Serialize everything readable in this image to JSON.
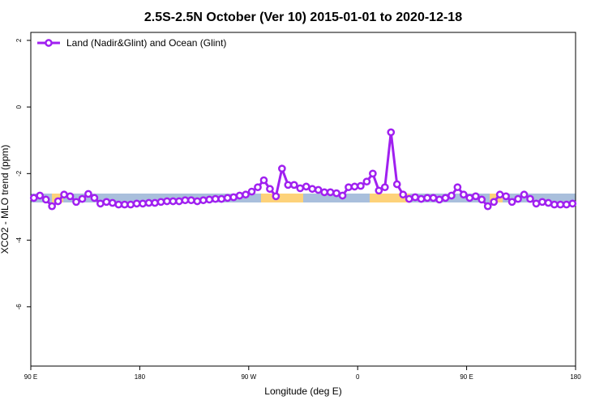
{
  "chart_data": {
    "type": "line",
    "title": "2.5S-2.5N October (Ver 10)   2015-01-01 to 2020-12-18",
    "xlabel": "Longitude (deg E)",
    "ylabel": "XCO2 - MLO trend (ppm)",
    "x": [
      92.5,
      97.5,
      102.5,
      107.5,
      112.5,
      117.5,
      122.5,
      127.5,
      132.5,
      137.5,
      142.5,
      147.5,
      152.5,
      157.5,
      162.5,
      167.5,
      172.5,
      177.5,
      182.5,
      187.5,
      192.5,
      197.5,
      202.5,
      207.5,
      212.5,
      217.5,
      222.5,
      227.5,
      232.5,
      237.5,
      242.5,
      247.5,
      252.5,
      257.5,
      262.5,
      267.5,
      272.5,
      277.5,
      282.5,
      287.5,
      292.5,
      297.5,
      302.5,
      307.5,
      312.5,
      317.5,
      322.5,
      327.5,
      332.5,
      337.5,
      342.5,
      347.5,
      352.5,
      357.5,
      362.5,
      367.5,
      372.5,
      377.5,
      382.5,
      387.5,
      392.5,
      397.5,
      402.5,
      407.5,
      412.5,
      417.5,
      422.5,
      427.5,
      432.5,
      437.5,
      442.5,
      447.5,
      452.5,
      457.5,
      462.5,
      467.5,
      472.5,
      477.5,
      482.5,
      487.5,
      492.5,
      497.5,
      502.5,
      507.5,
      512.5,
      517.5,
      522.5,
      527.5,
      532.5,
      537.5
    ],
    "series": [
      {
        "name": "Land (Nadir&Glint) and Ocean (Glint)",
        "color": "#a020f0",
        "values": [
          -2.73,
          -2.66,
          -2.78,
          -2.98,
          -2.83,
          -2.63,
          -2.68,
          -2.85,
          -2.76,
          -2.61,
          -2.73,
          -2.9,
          -2.85,
          -2.88,
          -2.93,
          -2.93,
          -2.93,
          -2.9,
          -2.9,
          -2.88,
          -2.88,
          -2.85,
          -2.83,
          -2.83,
          -2.83,
          -2.8,
          -2.8,
          -2.83,
          -2.8,
          -2.78,
          -2.76,
          -2.76,
          -2.73,
          -2.71,
          -2.66,
          -2.63,
          -2.54,
          -2.41,
          -2.2,
          -2.46,
          -2.68,
          -1.85,
          -2.34,
          -2.34,
          -2.44,
          -2.39,
          -2.46,
          -2.49,
          -2.56,
          -2.56,
          -2.59,
          -2.66,
          -2.41,
          -2.39,
          -2.37,
          -2.24,
          -2.0,
          -2.51,
          -2.41,
          -0.76,
          -2.32,
          -2.63,
          -2.76,
          -2.71,
          -2.76,
          -2.73,
          -2.73,
          -2.78,
          -2.73,
          -2.66,
          -2.41,
          -2.63,
          -2.73,
          -2.68,
          -2.78,
          -2.98,
          -2.85,
          -2.63,
          -2.68,
          -2.85,
          -2.76,
          -2.63,
          -2.76,
          -2.9,
          -2.85,
          -2.88,
          -2.93,
          -2.93,
          -2.93,
          -2.9
        ]
      }
    ],
    "xlim": [
      90,
      540
    ],
    "xticks": [
      {
        "value": 90,
        "label": "90 E"
      },
      180,
      {
        "value": 270,
        "label": "90 W"
      },
      {
        "value": 360,
        "label": "0"
      },
      {
        "value": 450,
        "label": "90 E"
      },
      {
        "value": 540,
        "label": "180"
      }
    ],
    "ylim": [
      -7.78,
      2.24
    ],
    "yticks": [
      2,
      0,
      -2,
      -4,
      -6
    ],
    "legend": "upper left"
  }
}
